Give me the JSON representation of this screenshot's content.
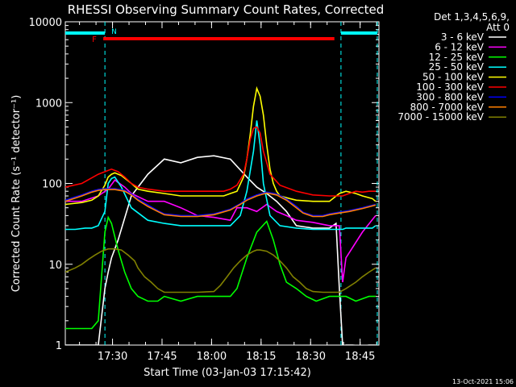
{
  "chart_data": {
    "type": "line",
    "title": "RHESSI Observing Summary Count Rates, Corrected",
    "xlabel": "Start Time (03-Jan-03 17:15:42)",
    "ylabel": "Corrected Count Rate (s⁻¹ detector⁻¹)",
    "y_scale": "log",
    "ylim": [
      1,
      10000
    ],
    "y_ticks": [
      1,
      10,
      100,
      1000,
      10000
    ],
    "y_tick_labels": [
      "1",
      "10",
      "100",
      "1000",
      "10000"
    ],
    "xlim_min": [
      0,
      95
    ],
    "x_ticks_min": [
      14.3,
      29.3,
      44.3,
      59.3,
      74.3,
      89.3
    ],
    "x_tick_labels": [
      "17:30",
      "17:45",
      "18:00",
      "18:15",
      "18:30",
      "18:45"
    ],
    "detectors": "Det 1,3,4,5,6,9,",
    "attenuator": "Att 0",
    "stamp": "13-Oct-2021 15:06",
    "flags": {
      "fast_rate_label": "F",
      "night_label": "N",
      "fast_rate_color": "#ff0000",
      "night_color": "#00ffff",
      "fast_rate_interval_min": [
        11.5,
        81.5
      ],
      "night_intervals_min": [
        [
          0,
          12
        ],
        [
          83.5,
          94.5
        ]
      ],
      "night_boundaries_min": [
        12,
        83.5,
        94.5
      ]
    },
    "series": [
      {
        "name": "3 - 6 keV",
        "color": "#ffffff",
        "x": [
          0,
          5,
          8,
          10,
          12,
          13,
          14,
          16,
          20,
          25,
          30,
          35,
          40,
          45,
          50,
          55,
          58,
          61,
          64,
          67,
          70,
          75,
          80,
          82,
          83,
          84,
          85,
          87,
          90,
          92,
          94
        ],
        "y": [
          1,
          1,
          1,
          1,
          5,
          8,
          12,
          20,
          70,
          130,
          200,
          180,
          210,
          220,
          200,
          120,
          90,
          75,
          60,
          45,
          30,
          28,
          28,
          32,
          5,
          0.5,
          1,
          1,
          0.8,
          1,
          1
        ]
      },
      {
        "name": "6 - 12 keV",
        "color": "#ff00ff",
        "x": [
          0,
          5,
          10,
          13,
          15,
          18,
          20,
          25,
          30,
          35,
          40,
          45,
          50,
          52,
          55,
          58,
          61,
          64,
          67,
          70,
          75,
          80,
          83,
          84,
          85,
          90,
          94
        ],
        "y": [
          60,
          60,
          70,
          85,
          110,
          90,
          75,
          60,
          60,
          50,
          40,
          38,
          35,
          50,
          50,
          45,
          55,
          45,
          40,
          35,
          33,
          30,
          30,
          6,
          12,
          25,
          40
        ]
      },
      {
        "name": "12 - 25 keV",
        "color": "#00ff00",
        "x": [
          0,
          2,
          4,
          6,
          8,
          10,
          12,
          13,
          14,
          16,
          18,
          20,
          22,
          25,
          28,
          30,
          35,
          40,
          45,
          50,
          52,
          55,
          58,
          61,
          63,
          65,
          67,
          70,
          73,
          76,
          80,
          83,
          85,
          88,
          92,
          94
        ],
        "y": [
          1.6,
          1.6,
          1.6,
          1.6,
          1.6,
          2,
          25,
          38,
          32,
          15,
          8,
          5,
          4,
          3.5,
          3.5,
          4,
          3.5,
          4,
          4,
          4,
          5,
          12,
          25,
          34,
          20,
          10,
          6,
          5,
          4,
          3.5,
          4,
          4,
          4,
          3.5,
          4,
          4
        ]
      },
      {
        "name": "25 - 50 keV",
        "color": "#00ffff",
        "x": [
          0,
          3,
          6,
          8,
          10,
          12,
          13,
          14,
          15,
          17,
          20,
          25,
          30,
          35,
          40,
          45,
          50,
          53,
          55,
          57,
          58,
          59,
          60,
          62,
          65,
          70,
          75,
          80,
          83,
          84,
          85,
          87,
          90,
          93,
          94
        ],
        "y": [
          27,
          27,
          28,
          28,
          30,
          45,
          100,
          115,
          120,
          90,
          50,
          35,
          32,
          30,
          30,
          30,
          30,
          40,
          80,
          250,
          600,
          300,
          100,
          40,
          30,
          28,
          27,
          27,
          27,
          27,
          28,
          28,
          28,
          28,
          30
        ]
      },
      {
        "name": "50 - 100 keV",
        "color": "#ffff00",
        "x": [
          0,
          5,
          8,
          10,
          12,
          13,
          14,
          15,
          17,
          20,
          22,
          25,
          30,
          35,
          40,
          45,
          48,
          50,
          52,
          54,
          55,
          56,
          57,
          58,
          59,
          60,
          61,
          62,
          63,
          64,
          65,
          68,
          70,
          75,
          80,
          83,
          85,
          88,
          90,
          93,
          94
        ],
        "y": [
          55,
          58,
          62,
          70,
          95,
          120,
          130,
          135,
          125,
          100,
          85,
          80,
          75,
          70,
          70,
          70,
          70,
          75,
          80,
          120,
          200,
          400,
          900,
          1500,
          1200,
          700,
          300,
          150,
          100,
          80,
          70,
          65,
          62,
          60,
          60,
          75,
          80,
          75,
          70,
          65,
          60
        ]
      },
      {
        "name": "100 - 300 keV",
        "color": "#ff0000",
        "x": [
          0,
          5,
          10,
          14,
          16,
          18,
          20,
          22,
          25,
          30,
          35,
          40,
          45,
          48,
          50,
          52,
          54,
          55,
          56,
          57,
          58,
          59,
          60,
          62,
          65,
          70,
          75,
          80,
          84,
          86,
          88,
          90,
          92,
          94
        ],
        "y": [
          90,
          100,
          130,
          150,
          140,
          120,
          100,
          90,
          85,
          80,
          80,
          80,
          80,
          80,
          85,
          95,
          130,
          200,
          350,
          480,
          500,
          420,
          250,
          130,
          95,
          80,
          72,
          70,
          70,
          75,
          80,
          78,
          80,
          80
        ]
      },
      {
        "name": "300 - 800 keV",
        "color": "#0000ff",
        "x": [
          0,
          5,
          8,
          10,
          12,
          15,
          18,
          20,
          22,
          25,
          28,
          30,
          35,
          40,
          45,
          50,
          53,
          55,
          58,
          61,
          64,
          67,
          70,
          72,
          75,
          78,
          80,
          83,
          86,
          90,
          94
        ],
        "y": [
          62,
          72,
          80,
          84,
          86,
          86,
          82,
          74,
          64,
          54,
          46,
          42,
          40,
          40,
          42,
          48,
          56,
          64,
          72,
          78,
          74,
          64,
          52,
          44,
          40,
          40,
          42,
          44,
          46,
          50,
          55
        ]
      },
      {
        "name": "800 - 7000 keV",
        "color": "#ff7f00",
        "x": [
          0,
          5,
          8,
          10,
          12,
          15,
          18,
          20,
          22,
          25,
          28,
          30,
          35,
          40,
          45,
          50,
          53,
          55,
          58,
          61,
          64,
          67,
          70,
          72,
          75,
          78,
          80,
          83,
          86,
          90,
          94
        ],
        "y": [
          60,
          70,
          78,
          82,
          84,
          84,
          80,
          72,
          62,
          52,
          45,
          41,
          39,
          39,
          41,
          47,
          55,
          62,
          70,
          76,
          72,
          62,
          50,
          43,
          39,
          39,
          41,
          43,
          45,
          49,
          54
        ]
      },
      {
        "name": "7000 - 15000 keV",
        "color": "#808000",
        "x": [
          0,
          3,
          5,
          7,
          9,
          11,
          13,
          15,
          17,
          19,
          21,
          22,
          24,
          26,
          28,
          30,
          35,
          40,
          45,
          47,
          49,
          51,
          53,
          55,
          57,
          58,
          59,
          61,
          63,
          65,
          67,
          69,
          71,
          73,
          75,
          78,
          80,
          83,
          85,
          88,
          90,
          92,
          94
        ],
        "y": [
          8,
          9,
          10,
          11.5,
          13,
          14.5,
          15.5,
          15.5,
          15,
          13,
          11,
          9,
          7,
          6,
          5,
          4.5,
          4.5,
          4.5,
          4.6,
          5.5,
          7,
          9,
          11,
          13,
          14.5,
          15,
          15,
          14.5,
          13,
          11,
          9,
          7,
          6,
          5,
          4.6,
          4.5,
          4.5,
          4.5,
          5,
          6,
          7,
          8,
          9
        ]
      }
    ]
  }
}
